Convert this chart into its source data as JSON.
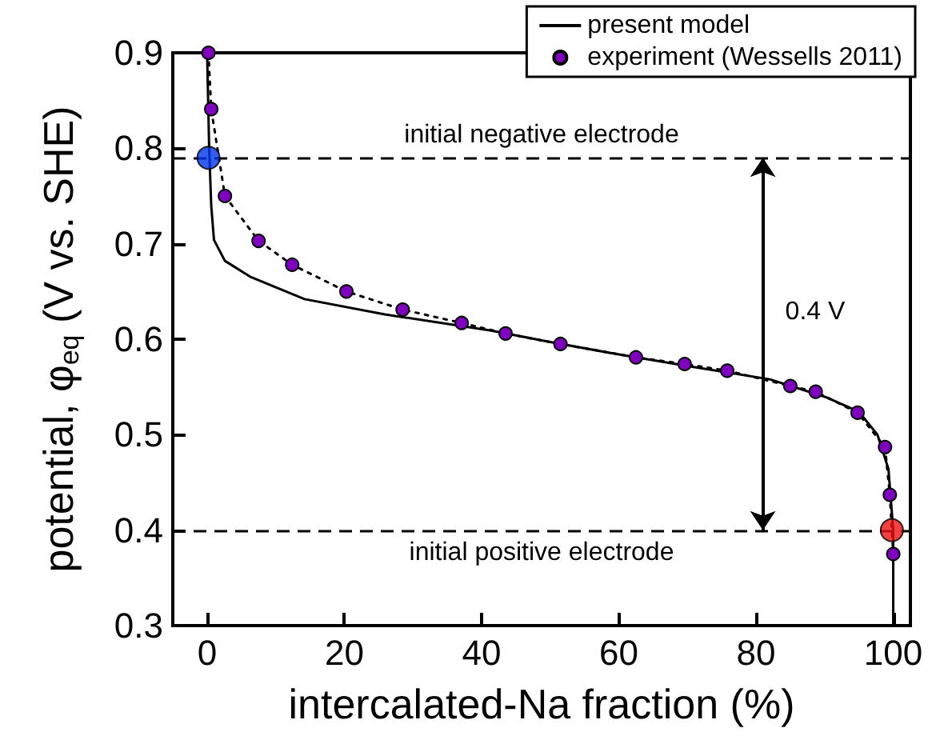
{
  "chart_data": {
    "type": "line",
    "xlabel": "intercalated-Na fraction (%)",
    "ylabel": "potential, φ$_{eq}$ (V vs. SHE)",
    "xlim": [
      -5,
      102.5
    ],
    "xticks": [
      0,
      20,
      40,
      60,
      80,
      100
    ],
    "ylim": [
      0.3,
      0.9
    ],
    "yticks": [
      0.3,
      0.4,
      0.5,
      0.6,
      0.7,
      0.8,
      0.9
    ],
    "grid": false,
    "legend": "top right",
    "series": [
      {
        "name": "present model",
        "color": "#000000",
        "marker": "none",
        "line_style": "solid",
        "x": [
          0,
          0.3,
          0.6,
          1,
          2.6,
          6.4,
          14.2,
          25.9,
          41.4,
          50,
          60,
          70,
          82,
          90.3,
          95,
          97.7,
          99.3,
          100,
          100
        ],
        "values": [
          0.9,
          0.8,
          0.74,
          0.704,
          0.682,
          0.665,
          0.642,
          0.626,
          0.609,
          0.597,
          0.584,
          0.572,
          0.558,
          0.539,
          0.524,
          0.5,
          0.464,
          0.4,
          0.3
        ]
      },
      {
        "name": "experiment (Wessells 2011)",
        "color": "#8000c0",
        "marker": "circle",
        "line_style": "dotted",
        "x": [
          0.2,
          0.6,
          2.6,
          7.5,
          12.4,
          20.3,
          28.5,
          37.1,
          43.5,
          51.5,
          62.5,
          69.6,
          75.8,
          85.0,
          88.7,
          94.8,
          98.8,
          99.5,
          100
        ],
        "values": [
          0.9,
          0.841,
          0.75,
          0.703,
          0.678,
          0.65,
          0.631,
          0.617,
          0.606,
          0.595,
          0.581,
          0.574,
          0.567,
          0.551,
          0.545,
          0.523,
          0.487,
          0.437,
          0.375
        ]
      },
      {
        "type": "scatter",
        "color": "#0033ee",
        "marker": "circle",
        "x": [
          0.2
        ],
        "values": [
          0.79
        ]
      },
      {
        "type": "scatter",
        "color": "#ee1111",
        "marker": "circle",
        "x": [
          99.8
        ],
        "values": [
          0.4
        ]
      }
    ],
    "ref_lines": [
      {
        "axis": "y",
        "value": 0.79,
        "label": "initial negative electrode",
        "line_style": "dashed",
        "color": "#000000"
      },
      {
        "axis": "y",
        "value": 0.4,
        "label": "initial positive electrode",
        "line_style": "dashed",
        "color": "#000000"
      }
    ],
    "annotations": [
      "0.4 V"
    ]
  }
}
